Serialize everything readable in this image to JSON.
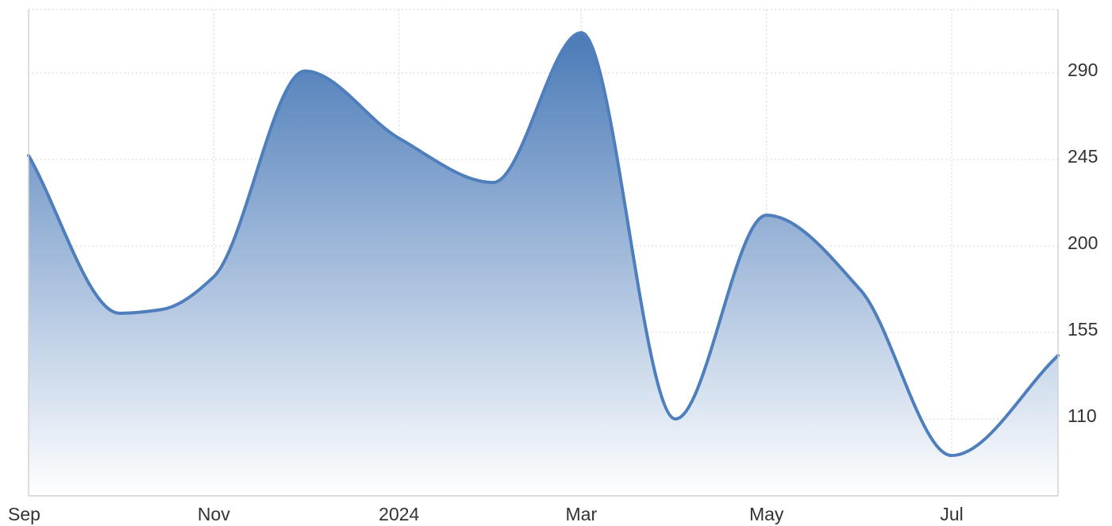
{
  "chart_data": {
    "type": "area",
    "title": "",
    "xlabel": "",
    "ylabel": "",
    "x_ticks": [
      {
        "label": "Sep",
        "date": "2023-09-01"
      },
      {
        "label": "Nov",
        "date": "2023-11-01"
      },
      {
        "label": "2024",
        "date": "2024-01-01"
      },
      {
        "label": "Mar",
        "date": "2024-03-01"
      },
      {
        "label": "May",
        "date": "2024-05-01"
      },
      {
        "label": "Jul",
        "date": "2024-07-01"
      }
    ],
    "y_ticks": [
      110,
      155,
      200,
      245,
      290
    ],
    "y_axis_position": "right",
    "xlim": [
      "2023-09-01",
      "2024-08-05"
    ],
    "ylim": [
      70,
      323
    ],
    "grid": true,
    "legend": "none",
    "series": [
      {
        "color": "#4e7fbc",
        "fill_top": "#4a7ab8",
        "fill_bottom": "#ffffff",
        "points": [
          {
            "date": "2023-09-01",
            "value": 247
          },
          {
            "date": "2023-10-01",
            "value": 165
          },
          {
            "date": "2023-10-15",
            "value": 167
          },
          {
            "date": "2023-11-01",
            "value": 184
          },
          {
            "date": "2023-12-01",
            "value": 291
          },
          {
            "date": "2024-01-01",
            "value": 256
          },
          {
            "date": "2024-02-01",
            "value": 233
          },
          {
            "date": "2024-03-01",
            "value": 311
          },
          {
            "date": "2024-04-01",
            "value": 110
          },
          {
            "date": "2024-05-01",
            "value": 216
          },
          {
            "date": "2024-06-01",
            "value": 177
          },
          {
            "date": "2024-07-01",
            "value": 91
          },
          {
            "date": "2024-08-05",
            "value": 143
          }
        ]
      }
    ]
  }
}
